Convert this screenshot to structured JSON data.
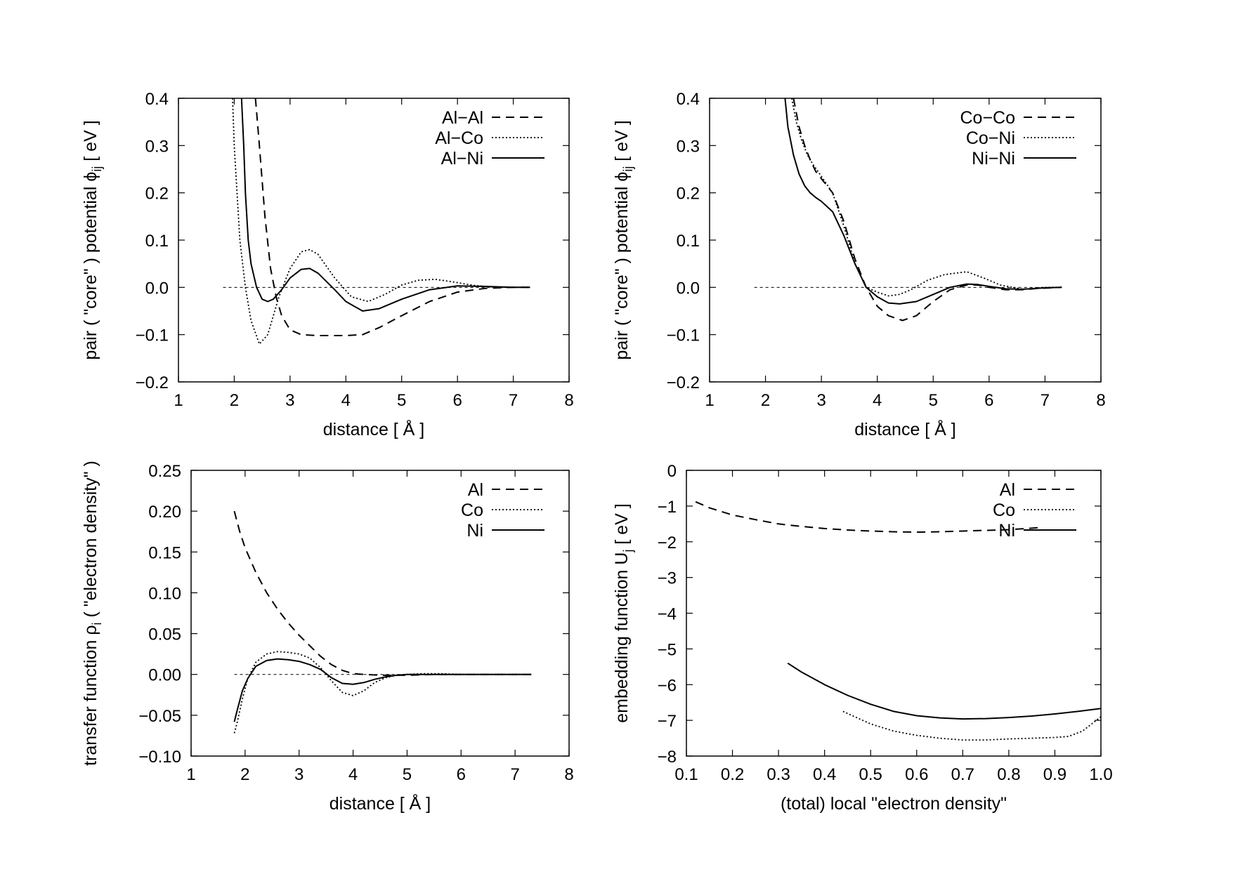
{
  "chart_data": [
    {
      "type": "line",
      "xlabel": "distance [ Å ]",
      "ylabel": "pair ( \"core\" ) potential ϕ",
      "ylabel_sub": "ij",
      "ylabel_tail": " [ eV ]",
      "xlim": [
        1,
        8
      ],
      "ylim": [
        -0.2,
        0.4
      ],
      "xticks": [
        1,
        2,
        3,
        4,
        5,
        6,
        7,
        8
      ],
      "xtick_labels": [
        "1",
        "2",
        "3",
        "4",
        "5",
        "6",
        "7",
        "8"
      ],
      "yticks": [
        -0.2,
        -0.1,
        0.0,
        0.1,
        0.2,
        0.3,
        0.4
      ],
      "ytick_labels": [
        "−0.2",
        "−0.1",
        "0.0",
        "0.1",
        "0.2",
        "0.3",
        "0.4"
      ],
      "zero_line": {
        "x": [
          1.8,
          7.3
        ],
        "y": 0
      },
      "legend_position": "top-right",
      "series": [
        {
          "name": "Al−Al",
          "style": "dashed",
          "x": [
            2.38,
            2.45,
            2.55,
            2.65,
            2.75,
            2.85,
            3.0,
            3.2,
            3.5,
            4.0,
            4.3,
            4.6,
            5.0,
            5.5,
            6.0,
            6.5,
            7.0,
            7.3
          ],
          "y": [
            0.4,
            0.3,
            0.15,
            0.04,
            -0.02,
            -0.06,
            -0.09,
            -0.1,
            -0.102,
            -0.102,
            -0.1,
            -0.085,
            -0.06,
            -0.03,
            -0.01,
            -0.002,
            0.0,
            0.0
          ]
        },
        {
          "name": "Al−Co",
          "style": "dotted",
          "x": [
            1.97,
            2.0,
            2.05,
            2.1,
            2.2,
            2.3,
            2.45,
            2.6,
            2.8,
            3.0,
            3.2,
            3.35,
            3.5,
            3.8,
            4.1,
            4.4,
            4.7,
            5.0,
            5.3,
            5.6,
            5.9,
            6.3,
            6.7,
            7.0,
            7.3
          ],
          "y": [
            0.4,
            0.3,
            0.2,
            0.1,
            0.0,
            -0.07,
            -0.12,
            -0.1,
            -0.02,
            0.04,
            0.075,
            0.08,
            0.07,
            0.02,
            -0.02,
            -0.03,
            -0.015,
            0.005,
            0.015,
            0.017,
            0.012,
            0.004,
            0.0,
            0.0,
            0.0
          ]
        },
        {
          "name": "Al−Ni",
          "style": "solid",
          "x": [
            2.13,
            2.17,
            2.2,
            2.25,
            2.3,
            2.4,
            2.5,
            2.6,
            2.7,
            2.85,
            3.0,
            3.2,
            3.35,
            3.5,
            3.8,
            4.0,
            4.3,
            4.6,
            5.0,
            5.5,
            6.0,
            6.5,
            7.0,
            7.3
          ],
          "y": [
            0.4,
            0.3,
            0.2,
            0.1,
            0.05,
            0.0,
            -0.025,
            -0.03,
            -0.025,
            -0.005,
            0.02,
            0.038,
            0.04,
            0.03,
            -0.005,
            -0.03,
            -0.05,
            -0.045,
            -0.025,
            -0.005,
            0.003,
            0.002,
            0.0,
            0.0
          ]
        }
      ]
    },
    {
      "type": "line",
      "xlabel": "distance [ Å ]",
      "ylabel": "pair ( \"core\" ) potential ϕ",
      "ylabel_sub": "ij",
      "ylabel_tail": " [ eV ]",
      "xlim": [
        1,
        8
      ],
      "ylim": [
        -0.2,
        0.4
      ],
      "xticks": [
        1,
        2,
        3,
        4,
        5,
        6,
        7,
        8
      ],
      "xtick_labels": [
        "1",
        "2",
        "3",
        "4",
        "5",
        "6",
        "7",
        "8"
      ],
      "yticks": [
        -0.2,
        -0.1,
        0.0,
        0.1,
        0.2,
        0.3,
        0.4
      ],
      "ytick_labels": [
        "−0.2",
        "−0.1",
        "0.0",
        "0.1",
        "0.2",
        "0.3",
        "0.4"
      ],
      "zero_line": {
        "x": [
          1.8,
          7.3
        ],
        "y": 0
      },
      "legend_position": "top-right",
      "series": [
        {
          "name": "Co−Co",
          "style": "dashed",
          "x": [
            2.5,
            2.6,
            2.7,
            2.8,
            2.9,
            3.0,
            3.2,
            3.4,
            3.6,
            3.8,
            4.0,
            4.2,
            4.45,
            4.7,
            5.0,
            5.3,
            5.6,
            5.8,
            6.0,
            6.3,
            6.6,
            6.9,
            7.3
          ],
          "y": [
            0.4,
            0.34,
            0.3,
            0.27,
            0.245,
            0.23,
            0.2,
            0.14,
            0.06,
            0.0,
            -0.04,
            -0.06,
            -0.07,
            -0.06,
            -0.03,
            -0.005,
            0.005,
            0.005,
            0.0,
            -0.005,
            -0.005,
            -0.002,
            0.0
          ]
        },
        {
          "name": "Co−Ni",
          "style": "dotted",
          "x": [
            2.47,
            2.55,
            2.65,
            2.75,
            2.85,
            3.0,
            3.2,
            3.4,
            3.6,
            3.8,
            4.0,
            4.2,
            4.4,
            4.6,
            4.9,
            5.2,
            5.6,
            5.9,
            6.2,
            6.6,
            7.0,
            7.3
          ],
          "y": [
            0.4,
            0.35,
            0.31,
            0.28,
            0.26,
            0.235,
            0.2,
            0.13,
            0.05,
            0.0,
            -0.01,
            -0.018,
            -0.015,
            -0.005,
            0.015,
            0.027,
            0.033,
            0.02,
            0.005,
            -0.004,
            0.0,
            0.0
          ]
        },
        {
          "name": "Ni−Ni",
          "style": "solid",
          "x": [
            2.35,
            2.4,
            2.5,
            2.6,
            2.7,
            2.8,
            2.9,
            3.0,
            3.2,
            3.4,
            3.6,
            3.8,
            4.0,
            4.2,
            4.4,
            4.7,
            5.0,
            5.3,
            5.6,
            5.8,
            6.0,
            6.3,
            6.6,
            7.0,
            7.3
          ],
          "y": [
            0.4,
            0.34,
            0.28,
            0.24,
            0.215,
            0.2,
            0.19,
            0.182,
            0.16,
            0.11,
            0.05,
            0.0,
            -0.02,
            -0.033,
            -0.035,
            -0.03,
            -0.015,
            0.0,
            0.007,
            0.006,
            0.002,
            -0.003,
            -0.004,
            -0.001,
            0.0
          ]
        }
      ]
    },
    {
      "type": "line",
      "xlabel": "distance [ Å ]",
      "ylabel": "transfer function ρ",
      "ylabel_sub": "i",
      "ylabel_tail": " ( \"electron density\" )",
      "xlim": [
        1,
        8
      ],
      "ylim": [
        -0.1,
        0.25
      ],
      "xticks": [
        1,
        2,
        3,
        4,
        5,
        6,
        7,
        8
      ],
      "xtick_labels": [
        "1",
        "2",
        "3",
        "4",
        "5",
        "6",
        "7",
        "8"
      ],
      "yticks": [
        -0.1,
        -0.05,
        0.0,
        0.05,
        0.1,
        0.15,
        0.2,
        0.25
      ],
      "ytick_labels": [
        "−0.10",
        "−0.05",
        "0.00",
        "0.05",
        "0.10",
        "0.15",
        "0.20",
        "0.25"
      ],
      "zero_line": {
        "x": [
          1.8,
          7.3
        ],
        "y": 0
      },
      "legend_position": "top-right",
      "series": [
        {
          "name": "Al",
          "style": "dashed",
          "x": [
            1.8,
            1.9,
            2.0,
            2.2,
            2.4,
            2.6,
            2.8,
            3.0,
            3.2,
            3.4,
            3.6,
            3.8,
            4.0,
            4.2,
            4.5,
            5.0,
            5.5,
            6.0,
            6.5,
            7.0,
            7.3
          ],
          "y": [
            0.2,
            0.175,
            0.155,
            0.125,
            0.1,
            0.08,
            0.063,
            0.048,
            0.035,
            0.022,
            0.012,
            0.005,
            0.001,
            0.0,
            -0.001,
            -0.001,
            0.0,
            0.0,
            0.0,
            0.0,
            0.0
          ]
        },
        {
          "name": "Co",
          "style": "dotted",
          "x": [
            1.8,
            1.85,
            1.95,
            2.05,
            2.2,
            2.4,
            2.6,
            2.8,
            3.0,
            3.2,
            3.4,
            3.6,
            3.8,
            4.0,
            4.2,
            4.4,
            4.6,
            4.8,
            5.0,
            5.3,
            5.6,
            6.0,
            6.5,
            7.0,
            7.3
          ],
          "y": [
            -0.072,
            -0.06,
            -0.03,
            -0.005,
            0.015,
            0.025,
            0.028,
            0.027,
            0.025,
            0.02,
            0.008,
            -0.008,
            -0.022,
            -0.026,
            -0.02,
            -0.01,
            -0.004,
            -0.001,
            0.0,
            0.001,
            0.001,
            0.0,
            0.0,
            0.0,
            0.0
          ]
        },
        {
          "name": "Ni",
          "style": "solid",
          "x": [
            1.8,
            1.85,
            1.95,
            2.05,
            2.2,
            2.4,
            2.6,
            2.8,
            3.0,
            3.2,
            3.4,
            3.6,
            3.8,
            4.0,
            4.2,
            4.4,
            4.6,
            4.8,
            5.0,
            5.3,
            5.6,
            6.0,
            6.5,
            7.0,
            7.3
          ],
          "y": [
            -0.058,
            -0.045,
            -0.02,
            -0.005,
            0.01,
            0.017,
            0.019,
            0.018,
            0.016,
            0.012,
            0.006,
            -0.004,
            -0.011,
            -0.012,
            -0.01,
            -0.006,
            -0.003,
            -0.001,
            0.0,
            0.0,
            0.0,
            0.0,
            0.0,
            0.0,
            0.0
          ]
        }
      ]
    },
    {
      "type": "line",
      "xlabel": "(total) local \"electron density\"",
      "ylabel": "embedding function U",
      "ylabel_sub": "j",
      "ylabel_tail": " [ eV ]",
      "xlim": [
        0.1,
        1.0
      ],
      "ylim": [
        -8,
        0
      ],
      "xticks": [
        0.1,
        0.2,
        0.3,
        0.4,
        0.5,
        0.6,
        0.7,
        0.8,
        0.9,
        1.0
      ],
      "xtick_labels": [
        "0.1",
        "0.2",
        "0.3",
        "0.4",
        "0.5",
        "0.6",
        "0.7",
        "0.8",
        "0.9",
        "1.0"
      ],
      "yticks": [
        -8,
        -7,
        -6,
        -5,
        -4,
        -3,
        -2,
        -1,
        0
      ],
      "ytick_labels": [
        "−8",
        "−7",
        "−6",
        "−5",
        "−4",
        "−3",
        "−2",
        "−1",
        "0"
      ],
      "legend_position": "top-right",
      "series": [
        {
          "name": "Al",
          "style": "dashed",
          "x": [
            0.12,
            0.15,
            0.2,
            0.25,
            0.3,
            0.35,
            0.4,
            0.45,
            0.5,
            0.55,
            0.6,
            0.65,
            0.7,
            0.75,
            0.8,
            0.85,
            0.87
          ],
          "y": [
            -0.88,
            -1.05,
            -1.25,
            -1.38,
            -1.5,
            -1.57,
            -1.63,
            -1.67,
            -1.7,
            -1.72,
            -1.73,
            -1.72,
            -1.7,
            -1.68,
            -1.66,
            -1.62,
            -1.6
          ]
        },
        {
          "name": "Co",
          "style": "dotted",
          "x": [
            0.44,
            0.5,
            0.55,
            0.6,
            0.65,
            0.7,
            0.75,
            0.8,
            0.85,
            0.9,
            0.93,
            0.96,
            0.98,
            1.0
          ],
          "y": [
            -6.75,
            -7.1,
            -7.3,
            -7.42,
            -7.5,
            -7.55,
            -7.55,
            -7.52,
            -7.5,
            -7.48,
            -7.45,
            -7.3,
            -7.1,
            -6.9
          ]
        },
        {
          "name": "Ni",
          "style": "solid",
          "x": [
            0.32,
            0.35,
            0.4,
            0.45,
            0.5,
            0.55,
            0.6,
            0.65,
            0.7,
            0.75,
            0.8,
            0.85,
            0.9,
            0.95,
            1.0
          ],
          "y": [
            -5.4,
            -5.65,
            -6.0,
            -6.3,
            -6.55,
            -6.75,
            -6.87,
            -6.93,
            -6.96,
            -6.95,
            -6.92,
            -6.88,
            -6.82,
            -6.75,
            -6.67
          ]
        }
      ]
    }
  ]
}
